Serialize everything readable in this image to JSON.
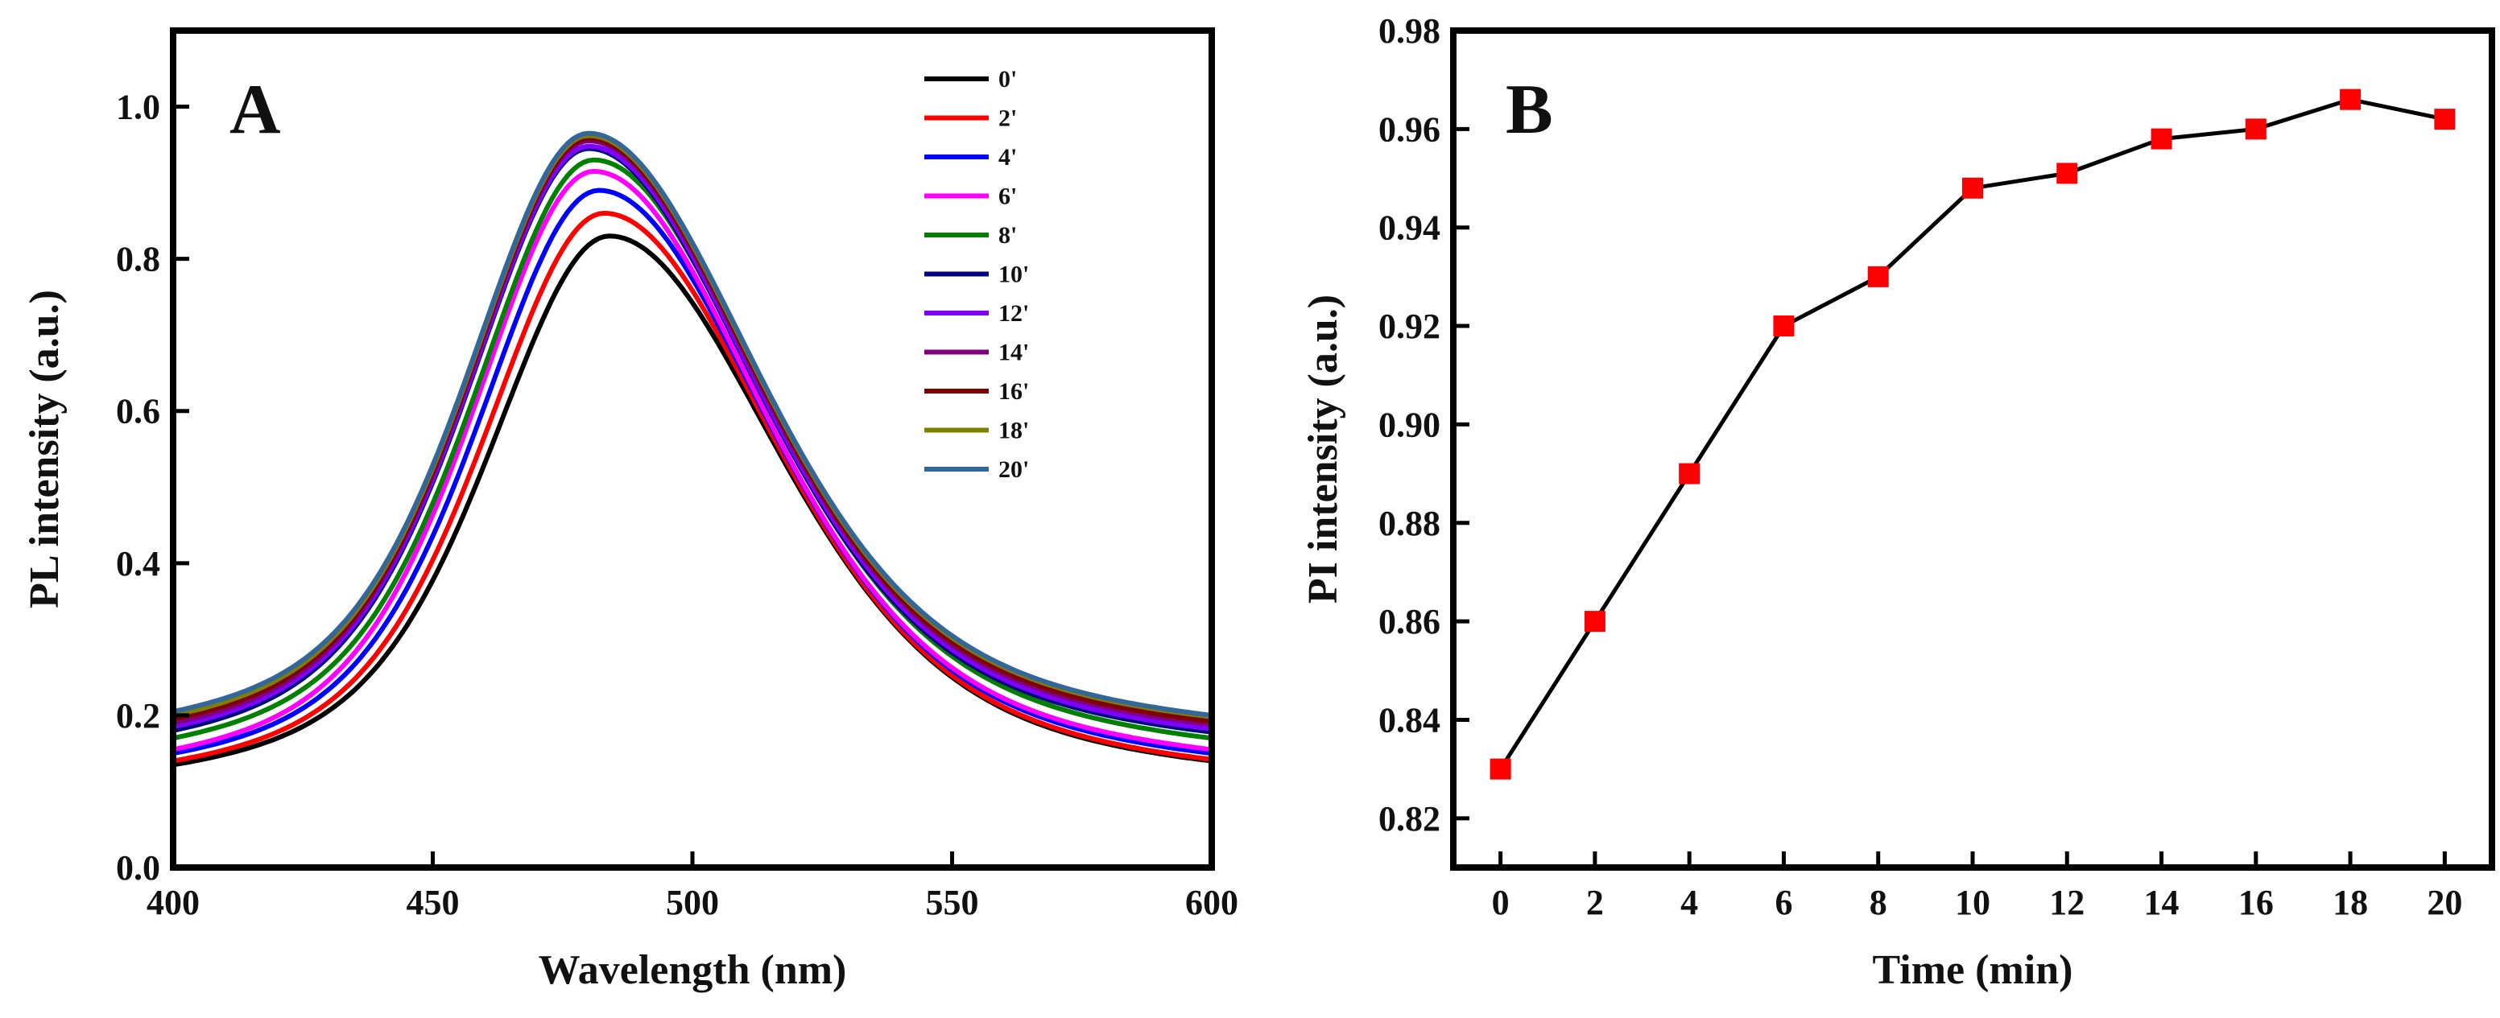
{
  "chart_data": [
    {
      "panel": "A",
      "type": "line",
      "xlabel": "Wavelength (nm)",
      "ylabel": "PL intensity (a.u.)",
      "xlim": [
        400,
        600
      ],
      "ylim": [
        0.0,
        1.1
      ],
      "xticks": [
        400,
        450,
        500,
        550,
        600
      ],
      "xtick_labels": [
        "400",
        "450",
        "500",
        "550",
        "600"
      ],
      "yticks": [
        0.0,
        0.2,
        0.4,
        0.6,
        0.8,
        1.0
      ],
      "ytick_labels": [
        "0.0",
        "0.2",
        "0.4",
        "0.6",
        "0.8",
        "1.0"
      ],
      "legend_position": "top-right",
      "series": [
        {
          "name": "0'",
          "color": "#000000",
          "peak_x": 484,
          "peak_y": 0.83,
          "start_y": 0.135,
          "end_y": 0.14
        },
        {
          "name": "2'",
          "color": "#ff0000",
          "peak_x": 483,
          "peak_y": 0.86,
          "start_y": 0.14,
          "end_y": 0.142
        },
        {
          "name": "4'",
          "color": "#0000ff",
          "peak_x": 482,
          "peak_y": 0.89,
          "start_y": 0.15,
          "end_y": 0.15
        },
        {
          "name": "6'",
          "color": "#ff00ff",
          "peak_x": 481,
          "peak_y": 0.915,
          "start_y": 0.155,
          "end_y": 0.155
        },
        {
          "name": "8'",
          "color": "#008000",
          "peak_x": 481,
          "peak_y": 0.93,
          "start_y": 0.17,
          "end_y": 0.17
        },
        {
          "name": "10'",
          "color": "#000080",
          "peak_x": 480,
          "peak_y": 0.945,
          "start_y": 0.18,
          "end_y": 0.178
        },
        {
          "name": "12'",
          "color": "#8000ff",
          "peak_x": 480,
          "peak_y": 0.948,
          "start_y": 0.185,
          "end_y": 0.182
        },
        {
          "name": "14'",
          "color": "#800080",
          "peak_x": 480,
          "peak_y": 0.955,
          "start_y": 0.19,
          "end_y": 0.188
        },
        {
          "name": "16'",
          "color": "#800000",
          "peak_x": 480,
          "peak_y": 0.958,
          "start_y": 0.195,
          "end_y": 0.192
        },
        {
          "name": "18'",
          "color": "#808000",
          "peak_x": 480,
          "peak_y": 0.962,
          "start_y": 0.2,
          "end_y": 0.198
        },
        {
          "name": "20'",
          "color": "#336699",
          "peak_x": 480,
          "peak_y": 0.965,
          "start_y": 0.205,
          "end_y": 0.2
        }
      ]
    },
    {
      "panel": "B",
      "type": "line",
      "markers": "square",
      "marker_color": "#ff0000",
      "line_color": "#000000",
      "xlabel": "Time (min)",
      "ylabel": "PI intensity (a.u.)",
      "xlim": [
        -1,
        21
      ],
      "ylim": [
        0.81,
        0.98
      ],
      "xticks": [
        0,
        2,
        4,
        6,
        8,
        10,
        12,
        14,
        16,
        18,
        20
      ],
      "xtick_labels": [
        "0",
        "2",
        "4",
        "6",
        "8",
        "10",
        "12",
        "14",
        "16",
        "18",
        "20"
      ],
      "yticks": [
        0.82,
        0.84,
        0.86,
        0.88,
        0.9,
        0.92,
        0.94,
        0.96,
        0.98
      ],
      "ytick_labels": [
        "0.82",
        "0.84",
        "0.86",
        "0.88",
        "0.90",
        "0.92",
        "0.94",
        "0.96",
        "0.98"
      ],
      "x": [
        0,
        2,
        4,
        6,
        8,
        10,
        12,
        14,
        16,
        18,
        20
      ],
      "y": [
        0.83,
        0.86,
        0.89,
        0.92,
        0.93,
        0.948,
        0.951,
        0.958,
        0.96,
        0.966,
        0.962
      ]
    }
  ]
}
